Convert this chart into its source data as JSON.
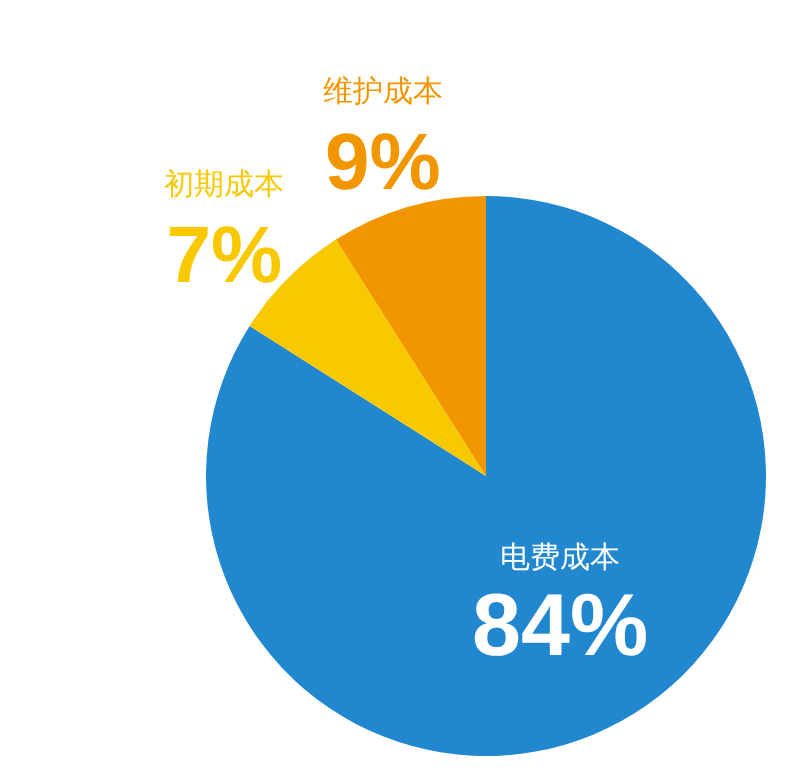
{
  "chart_data": {
    "type": "pie",
    "categories": [
      "电费成本",
      "初期成本",
      "维护成本"
    ],
    "values": [
      84,
      7,
      9
    ],
    "colors": [
      "#2188d0",
      "#f8c800",
      "#f29600"
    ],
    "value_labels": [
      "84%",
      "7%",
      "9%"
    ],
    "legend": false
  }
}
